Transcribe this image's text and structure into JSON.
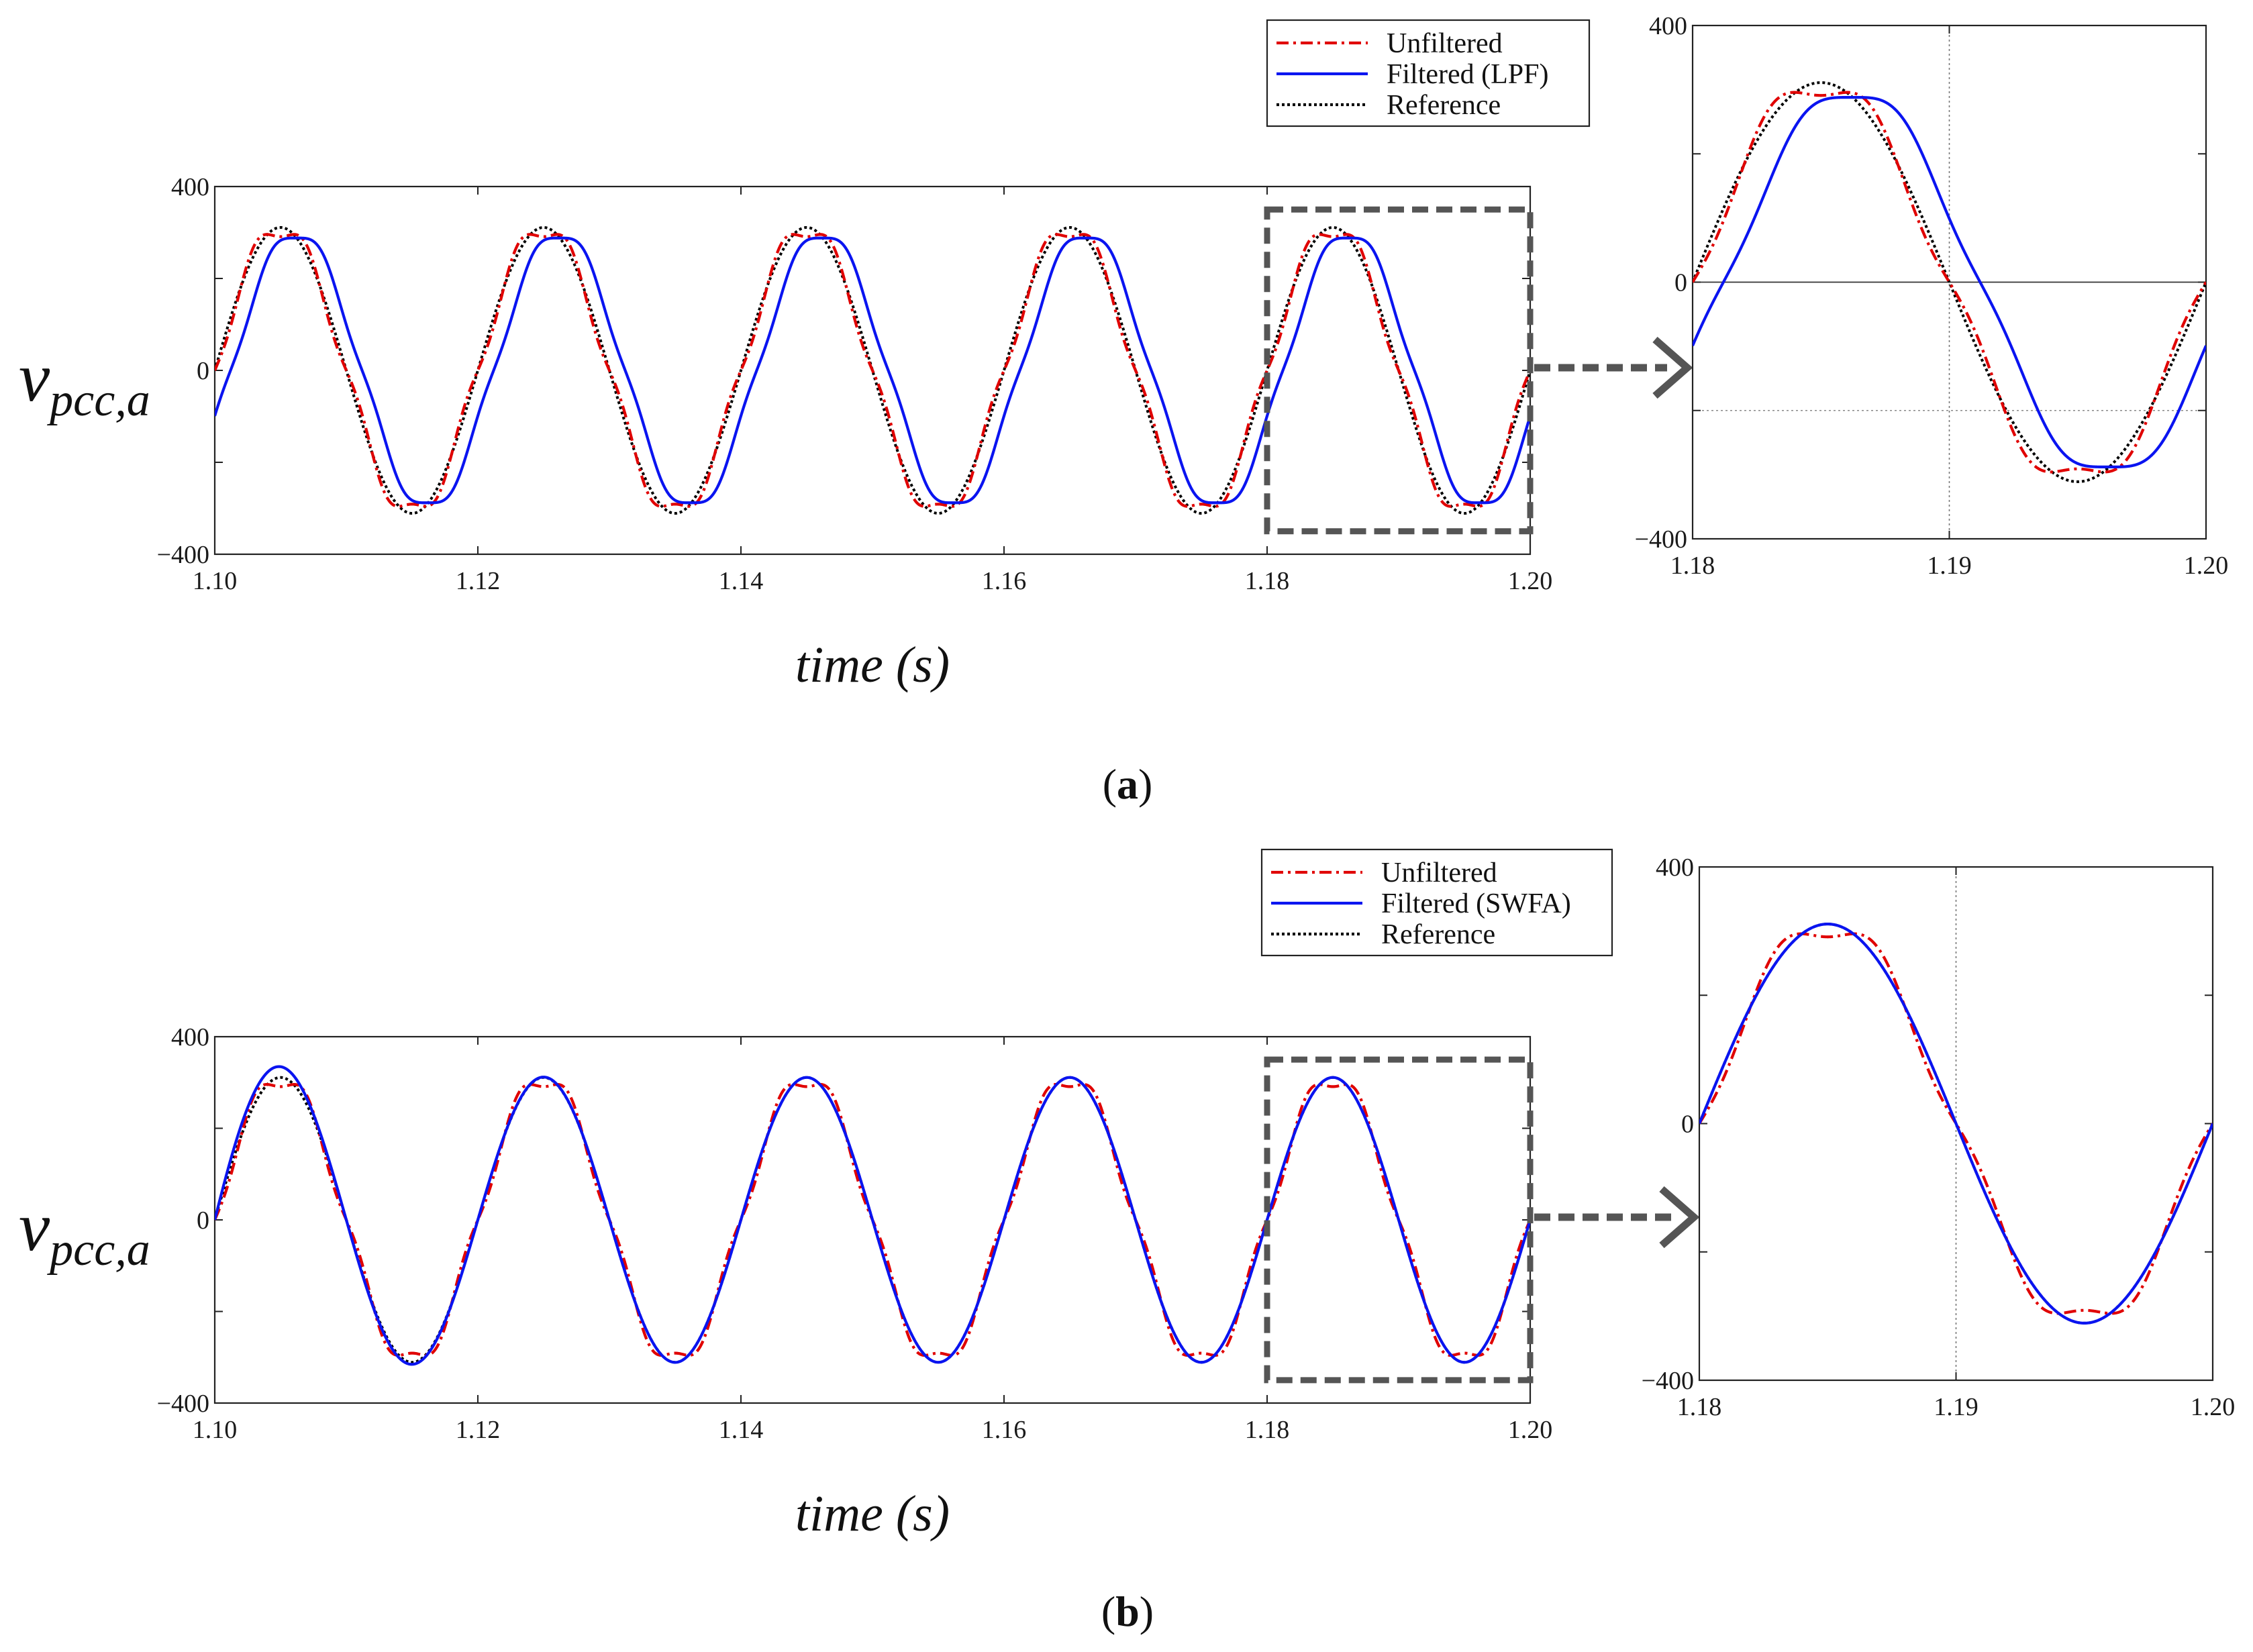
{
  "figure": {
    "series_styles": {
      "unfiltered": {
        "color": "#e00000",
        "dash": "dash-dot"
      },
      "filtered": {
        "color": "#0a14f0",
        "dash": "solid"
      },
      "reference": {
        "color": "#000000",
        "dash": "dotted"
      }
    },
    "box_color": "#555555",
    "zoom_marker": "dashed-arrow"
  },
  "chart_data": [
    {
      "id": "a-main",
      "type": "line",
      "panel": "a",
      "title": "",
      "xlabel": "time (s)",
      "ylabel_main": "v",
      "ylabel_sub": "pcc,a",
      "xlim": [
        1.1,
        1.2
      ],
      "ylim": [
        -400,
        400
      ],
      "xticks": [
        1.1,
        1.12,
        1.14,
        1.16,
        1.18,
        1.2
      ],
      "xtick_labels": [
        "1.10",
        "1.12",
        "1.14",
        "1.16",
        "1.18",
        "1.20"
      ],
      "yticks": [
        -400,
        -200,
        0,
        200,
        400
      ],
      "ytick_labels": [
        "−400",
        "",
        "0",
        "",
        "400"
      ],
      "legend": [
        "Unfiltered",
        "Filtered (LPF)",
        "Reference"
      ],
      "legend_position": "above-right",
      "series": [
        {
          "name": "Unfiltered",
          "frequency_hz": 50,
          "amplitude": 311,
          "harmonic_5th_amplitude": 20,
          "delay_ms": 0
        },
        {
          "name": "Filtered (LPF)",
          "frequency_hz": 50,
          "amplitude": 300,
          "harmonic_5th_amplitude": 12,
          "delay_ms": 1.2
        },
        {
          "name": "Reference",
          "frequency_hz": 50,
          "amplitude": 311,
          "delay_ms": 0
        }
      ],
      "zoom_window": {
        "x": [
          1.18,
          1.2
        ],
        "y": [
          -350,
          350
        ]
      }
    },
    {
      "id": "a-zoom",
      "type": "line",
      "panel": "a",
      "xlim": [
        1.18,
        1.2
      ],
      "ylim": [
        -400,
        400
      ],
      "xticks": [
        1.18,
        1.19,
        1.2
      ],
      "xtick_labels": [
        "1.18",
        "1.19",
        "1.20"
      ],
      "yticks": [
        -400,
        -200,
        0,
        200,
        400
      ],
      "ytick_labels": [
        "−400",
        "",
        "0",
        "",
        "400"
      ],
      "guides": {
        "vertical_x": 1.19,
        "horizontal_y": [
          0,
          -200
        ]
      },
      "series": [
        {
          "name": "Unfiltered",
          "frequency_hz": 50,
          "amplitude": 311,
          "harmonic_5th_amplitude": 20,
          "delay_ms": 0
        },
        {
          "name": "Filtered (LPF)",
          "frequency_hz": 50,
          "amplitude": 300,
          "harmonic_5th_amplitude": 12,
          "delay_ms": 1.2
        },
        {
          "name": "Reference",
          "frequency_hz": 50,
          "amplitude": 311,
          "delay_ms": 0
        }
      ]
    },
    {
      "id": "b-main",
      "type": "line",
      "panel": "b",
      "title": "",
      "xlabel": "time (s)",
      "ylabel_main": "v",
      "ylabel_sub": "pcc,a",
      "xlim": [
        1.1,
        1.2
      ],
      "ylim": [
        -400,
        400
      ],
      "xticks": [
        1.1,
        1.12,
        1.14,
        1.16,
        1.18,
        1.2
      ],
      "xtick_labels": [
        "1.10",
        "1.12",
        "1.14",
        "1.16",
        "1.18",
        "1.20"
      ],
      "yticks": [
        -400,
        -200,
        0,
        200,
        400
      ],
      "ytick_labels": [
        "−400",
        "",
        "0",
        "",
        "400"
      ],
      "legend": [
        "Unfiltered",
        "Filtered (SWFA)",
        "Reference"
      ],
      "legend_position": "above-right",
      "series": [
        {
          "name": "Unfiltered",
          "frequency_hz": 50,
          "amplitude": 311,
          "harmonic_5th_amplitude": 20,
          "delay_ms": 0
        },
        {
          "name": "Filtered (SWFA)",
          "frequency_hz": 50,
          "amplitude": 311,
          "startup_overshoot_peak": 365,
          "delay_ms": 0
        },
        {
          "name": "Reference",
          "frequency_hz": 50,
          "amplitude": 311,
          "delay_ms": 0
        }
      ],
      "zoom_window": {
        "x": [
          1.18,
          1.2
        ],
        "y": [
          -350,
          350
        ]
      }
    },
    {
      "id": "b-zoom",
      "type": "line",
      "panel": "b",
      "xlim": [
        1.18,
        1.2
      ],
      "ylim": [
        -400,
        400
      ],
      "xticks": [
        1.18,
        1.19,
        1.2
      ],
      "xtick_labels": [
        "1.18",
        "1.19",
        "1.20"
      ],
      "yticks": [
        -400,
        -200,
        0,
        200,
        400
      ],
      "ytick_labels": [
        "−400",
        "",
        "0",
        "",
        "400"
      ],
      "guides": {
        "vertical_x": 1.19,
        "horizontal_y": []
      },
      "series": [
        {
          "name": "Unfiltered",
          "frequency_hz": 50,
          "amplitude": 311,
          "harmonic_5th_amplitude": 20,
          "delay_ms": 0
        },
        {
          "name": "Filtered (SWFA)",
          "frequency_hz": 50,
          "amplitude": 311,
          "delay_ms": 0
        },
        {
          "name": "Reference",
          "frequency_hz": 50,
          "amplitude": 311,
          "delay_ms": 0
        }
      ]
    }
  ],
  "panels": {
    "a": {
      "open": "(",
      "letter": "a",
      "close": ")"
    },
    "b": {
      "open": "(",
      "letter": "b",
      "close": ")"
    }
  }
}
